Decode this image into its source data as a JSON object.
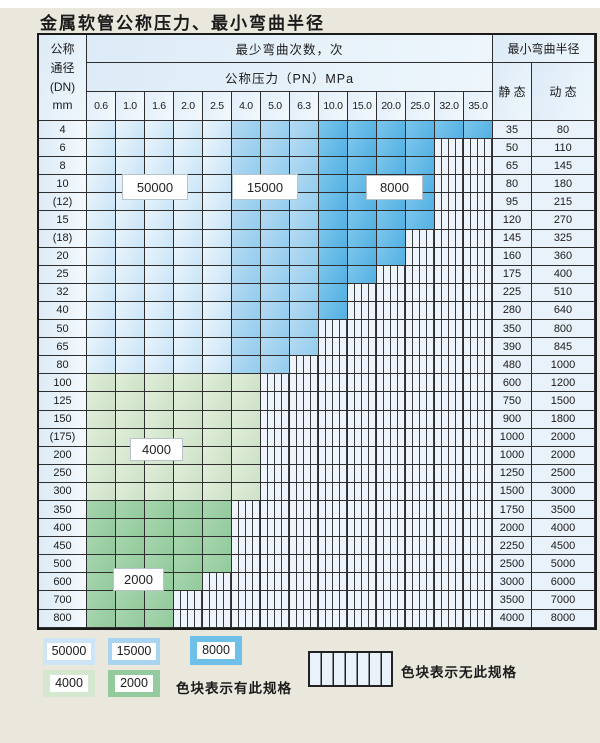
{
  "title": "金属软管公称压力、最小弯曲半径",
  "table": {
    "header": {
      "dn_lines": [
        "公称",
        "通径",
        "(DN)",
        "mm"
      ],
      "cycles_label": "最少弯曲次数，次",
      "pressure_label": "公称压力（PN）MPa",
      "radius_label": "最小弯曲半径",
      "static_label": "静 态",
      "dynamic_label": "动 态"
    },
    "pressure_columns": [
      "0.6",
      "1.0",
      "1.6",
      "2.0",
      "2.5",
      "4.0",
      "5.0",
      "6.3",
      "10.0",
      "15.0",
      "20.0",
      "25.0",
      "32.0",
      "35.0"
    ],
    "rows": [
      {
        "dn": "4",
        "palette": "blue",
        "colored": 14,
        "static": "35",
        "dynamic": "80"
      },
      {
        "dn": "6",
        "palette": "blue",
        "colored": 12,
        "static": "50",
        "dynamic": "110"
      },
      {
        "dn": "8",
        "palette": "blue",
        "colored": 12,
        "static": "65",
        "dynamic": "145"
      },
      {
        "dn": "10",
        "palette": "blue",
        "colored": 12,
        "static": "80",
        "dynamic": "180"
      },
      {
        "dn": "(12)",
        "palette": "blue",
        "colored": 12,
        "static": "95",
        "dynamic": "215"
      },
      {
        "dn": "15",
        "palette": "blue",
        "colored": 12,
        "static": "120",
        "dynamic": "270"
      },
      {
        "dn": "(18)",
        "palette": "blue",
        "colored": 11,
        "static": "145",
        "dynamic": "325"
      },
      {
        "dn": "20",
        "palette": "blue",
        "colored": 11,
        "static": "160",
        "dynamic": "360"
      },
      {
        "dn": "25",
        "palette": "blue",
        "colored": 10,
        "static": "175",
        "dynamic": "400"
      },
      {
        "dn": "32",
        "palette": "blue",
        "colored": 9,
        "static": "225",
        "dynamic": "510"
      },
      {
        "dn": "40",
        "palette": "blue",
        "colored": 9,
        "static": "280",
        "dynamic": "640"
      },
      {
        "dn": "50",
        "palette": "blue",
        "colored": 8,
        "static": "350",
        "dynamic": "800"
      },
      {
        "dn": "65",
        "palette": "blue",
        "colored": 8,
        "static": "390",
        "dynamic": "845"
      },
      {
        "dn": "80",
        "palette": "blue",
        "colored": 7,
        "static": "480",
        "dynamic": "1000"
      },
      {
        "dn": "100",
        "palette": "g1",
        "colored": 6,
        "static": "600",
        "dynamic": "1200"
      },
      {
        "dn": "125",
        "palette": "g1",
        "colored": 6,
        "static": "750",
        "dynamic": "1500"
      },
      {
        "dn": "150",
        "palette": "g1",
        "colored": 6,
        "static": "900",
        "dynamic": "1800"
      },
      {
        "dn": "(175)",
        "palette": "g1",
        "colored": 6,
        "static": "1000",
        "dynamic": "2000"
      },
      {
        "dn": "200",
        "palette": "g1",
        "colored": 6,
        "static": "1000",
        "dynamic": "2000"
      },
      {
        "dn": "250",
        "palette": "g1",
        "colored": 6,
        "static": "1250",
        "dynamic": "2500"
      },
      {
        "dn": "300",
        "palette": "g1",
        "colored": 6,
        "static": "1500",
        "dynamic": "3000"
      },
      {
        "dn": "350",
        "palette": "g2",
        "colored": 5,
        "static": "1750",
        "dynamic": "3500"
      },
      {
        "dn": "400",
        "palette": "g2",
        "colored": 5,
        "static": "2000",
        "dynamic": "4000"
      },
      {
        "dn": "450",
        "palette": "g2",
        "colored": 5,
        "static": "2250",
        "dynamic": "4500"
      },
      {
        "dn": "500",
        "palette": "g2",
        "colored": 5,
        "static": "2500",
        "dynamic": "5000"
      },
      {
        "dn": "600",
        "palette": "g2",
        "colored": 4,
        "static": "3000",
        "dynamic": "6000"
      },
      {
        "dn": "700",
        "palette": "g2",
        "colored": 3,
        "static": "3500",
        "dynamic": "7000"
      },
      {
        "dn": "800",
        "palette": "g2",
        "colored": 3,
        "static": "4000",
        "dynamic": "8000"
      }
    ]
  },
  "overlay_labels": [
    {
      "value": "50000"
    },
    {
      "value": "15000"
    },
    {
      "value": "8000"
    },
    {
      "value": "4000"
    },
    {
      "value": "2000"
    }
  ],
  "legend": {
    "swatches": [
      {
        "value": "50000",
        "color": "#cde5f6"
      },
      {
        "value": "15000",
        "color": "#a9d4f0"
      },
      {
        "value": "8000",
        "color": "#6fc0e9"
      },
      {
        "value": "4000",
        "color": "#d4e7cf"
      },
      {
        "value": "2000",
        "color": "#94cb9e"
      }
    ],
    "has_spec_text": "色块表示有此规格",
    "no_spec_text": "色块表示无此规格"
  },
  "colors": {
    "page_bg": "#eae7dc",
    "band_50000": "#cde5f6",
    "band_15000": "#9ed0ee",
    "band_8000": "#5fb7e6",
    "band_4000": "#d6e8d0",
    "band_2000": "#9bcfa4",
    "hatch_bg": "#eef4fb",
    "border": "#2e2e2e"
  }
}
